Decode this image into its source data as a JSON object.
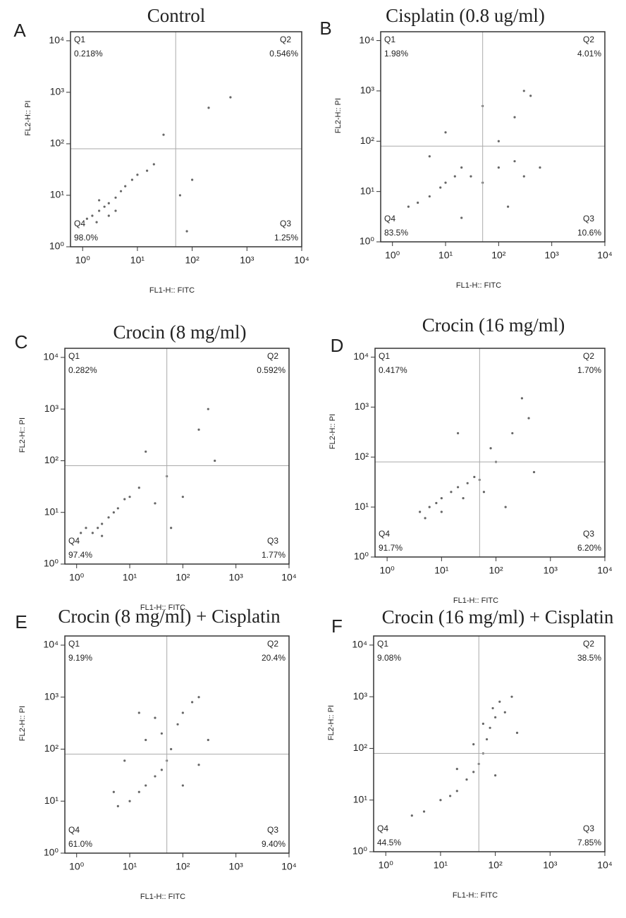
{
  "chart_data": [
    {
      "type": "scatter",
      "panel": "A",
      "title": "Control",
      "xlabel": "FL1-H:: FITC",
      "ylabel": "FL2-H:: PI",
      "xscale": "log",
      "yscale": "log",
      "color": "#666666",
      "xlim": [
        0.6,
        10000
      ],
      "ylim": [
        1,
        15000
      ],
      "xticks": [
        {
          "value": 1,
          "label": "10⁰"
        },
        {
          "value": 10,
          "label": "10¹"
        },
        {
          "value": 100,
          "label": "10²"
        },
        {
          "value": 1000,
          "label": "10³"
        },
        {
          "value": 10000,
          "label": "10⁴"
        }
      ],
      "yticks": [
        {
          "value": 1,
          "label": "10⁰"
        },
        {
          "value": 10,
          "label": "10¹"
        },
        {
          "value": 100,
          "label": "10²"
        },
        {
          "value": 1000,
          "label": "10³"
        },
        {
          "value": 10000,
          "label": "10⁴"
        }
      ],
      "gate": {
        "x": 50,
        "y": 80
      },
      "quadrants": [
        {
          "name": "Q1",
          "percent": "0.218%"
        },
        {
          "name": "Q2",
          "percent": "0.546%"
        },
        {
          "name": "Q4",
          "percent": "98.0%"
        },
        {
          "name": "Q3",
          "percent": "1.25%"
        }
      ],
      "x": [
        1.5,
        2,
        2.5,
        3,
        1.2,
        4,
        5,
        6,
        8,
        10,
        3,
        2,
        1.8,
        4,
        15,
        20,
        60,
        100,
        200,
        500,
        30,
        80
      ],
      "y": [
        4,
        5,
        6,
        7,
        3.5,
        9,
        12,
        15,
        20,
        25,
        4,
        8,
        3,
        5,
        30,
        40,
        10,
        20,
        500,
        800,
        150,
        2
      ]
    },
    {
      "type": "scatter",
      "panel": "B",
      "title": "Cisplatin (0.8 ug/ml)",
      "xlabel": "FL1-H:: FITC",
      "ylabel": "FL2-H:: PI",
      "xscale": "log",
      "yscale": "log",
      "color": "#666666",
      "xlim": [
        0.6,
        10000
      ],
      "ylim": [
        1,
        15000
      ],
      "xticks": [
        {
          "value": 1,
          "label": "10⁰"
        },
        {
          "value": 10,
          "label": "10¹"
        },
        {
          "value": 100,
          "label": "10²"
        },
        {
          "value": 1000,
          "label": "10³"
        },
        {
          "value": 10000,
          "label": "10⁴"
        }
      ],
      "yticks": [
        {
          "value": 1,
          "label": "10⁰"
        },
        {
          "value": 10,
          "label": "10¹"
        },
        {
          "value": 100,
          "label": "10²"
        },
        {
          "value": 1000,
          "label": "10³"
        },
        {
          "value": 10000,
          "label": "10⁴"
        }
      ],
      "gate": {
        "x": 50,
        "y": 80
      },
      "quadrants": [
        {
          "name": "Q1",
          "percent": "1.98%"
        },
        {
          "name": "Q2",
          "percent": "4.01%"
        },
        {
          "name": "Q4",
          "percent": "83.5%"
        },
        {
          "name": "Q3",
          "percent": "10.6%"
        }
      ],
      "x": [
        2,
        3,
        5,
        8,
        10,
        15,
        20,
        30,
        50,
        100,
        200,
        300,
        100,
        200,
        400,
        300,
        10,
        5,
        50,
        20,
        150,
        600
      ],
      "y": [
        5,
        6,
        8,
        12,
        15,
        20,
        30,
        20,
        15,
        30,
        40,
        20,
        100,
        300,
        800,
        1000,
        150,
        50,
        500,
        3,
        5,
        30
      ]
    },
    {
      "type": "scatter",
      "panel": "C",
      "title": "Crocin (8 mg/ml)",
      "xlabel": "FL1-H:: FITC",
      "ylabel": "FL2-H:: PI",
      "xscale": "log",
      "yscale": "log",
      "color": "#666666",
      "xlim": [
        0.6,
        10000
      ],
      "ylim": [
        1,
        15000
      ],
      "xticks": [
        {
          "value": 1,
          "label": "10⁰"
        },
        {
          "value": 10,
          "label": "10¹"
        },
        {
          "value": 100,
          "label": "10²"
        },
        {
          "value": 1000,
          "label": "10³"
        },
        {
          "value": 10000,
          "label": "10⁴"
        }
      ],
      "yticks": [
        {
          "value": 1,
          "label": "10⁰"
        },
        {
          "value": 10,
          "label": "10¹"
        },
        {
          "value": 100,
          "label": "10²"
        },
        {
          "value": 1000,
          "label": "10³"
        },
        {
          "value": 10000,
          "label": "10⁴"
        }
      ],
      "gate": {
        "x": 50,
        "y": 80
      },
      "quadrants": [
        {
          "name": "Q1",
          "percent": "0.282%"
        },
        {
          "name": "Q2",
          "percent": "0.592%"
        },
        {
          "name": "Q4",
          "percent": "97.4%"
        },
        {
          "name": "Q3",
          "percent": "1.77%"
        }
      ],
      "x": [
        1.5,
        2,
        3,
        4,
        5,
        6,
        8,
        10,
        2.5,
        1.2,
        3,
        15,
        30,
        50,
        100,
        200,
        300,
        20,
        60,
        400
      ],
      "y": [
        5,
        4,
        6,
        8,
        10,
        12,
        18,
        20,
        5,
        4,
        3.5,
        30,
        15,
        50,
        20,
        400,
        1000,
        150,
        5,
        100
      ]
    },
    {
      "type": "scatter",
      "panel": "D",
      "title": "Crocin (16 mg/ml)",
      "xlabel": "FL1-H:: FITC",
      "ylabel": "FL2-H:: PI",
      "xscale": "log",
      "yscale": "log",
      "color": "#666666",
      "xlim": [
        0.6,
        10000
      ],
      "ylim": [
        1,
        15000
      ],
      "xticks": [
        {
          "value": 1,
          "label": "10⁰"
        },
        {
          "value": 10,
          "label": "10¹"
        },
        {
          "value": 100,
          "label": "10²"
        },
        {
          "value": 1000,
          "label": "10³"
        },
        {
          "value": 10000,
          "label": "10⁴"
        }
      ],
      "yticks": [
        {
          "value": 1,
          "label": "10⁰"
        },
        {
          "value": 10,
          "label": "10¹"
        },
        {
          "value": 100,
          "label": "10²"
        },
        {
          "value": 1000,
          "label": "10³"
        },
        {
          "value": 10000,
          "label": "10⁴"
        }
      ],
      "gate": {
        "x": 50,
        "y": 80
      },
      "quadrants": [
        {
          "name": "Q1",
          "percent": "0.417%"
        },
        {
          "name": "Q2",
          "percent": "1.70%"
        },
        {
          "name": "Q4",
          "percent": "91.7%"
        },
        {
          "name": "Q3",
          "percent": "6.20%"
        }
      ],
      "x": [
        4,
        6,
        8,
        10,
        15,
        20,
        30,
        40,
        50,
        10,
        25,
        5,
        60,
        100,
        200,
        400,
        300,
        80,
        20,
        150,
        500
      ],
      "y": [
        8,
        10,
        12,
        15,
        20,
        25,
        30,
        40,
        35,
        8,
        15,
        6,
        20,
        80,
        300,
        600,
        1500,
        150,
        300,
        10,
        50
      ]
    },
    {
      "type": "scatter",
      "panel": "E",
      "title": "Crocin (8 mg/ml) + Cisplatin",
      "xlabel": "FL1-H:: FITC",
      "ylabel": "FL2-H:: PI",
      "xscale": "log",
      "yscale": "log",
      "color": "#666666",
      "xlim": [
        0.6,
        10000
      ],
      "ylim": [
        1,
        15000
      ],
      "xticks": [
        {
          "value": 1,
          "label": "10⁰"
        },
        {
          "value": 10,
          "label": "10¹"
        },
        {
          "value": 100,
          "label": "10²"
        },
        {
          "value": 1000,
          "label": "10³"
        },
        {
          "value": 10000,
          "label": "10⁴"
        }
      ],
      "yticks": [
        {
          "value": 1,
          "label": "10⁰"
        },
        {
          "value": 10,
          "label": "10¹"
        },
        {
          "value": 100,
          "label": "10²"
        },
        {
          "value": 1000,
          "label": "10³"
        },
        {
          "value": 10000,
          "label": "10⁴"
        }
      ],
      "gate": {
        "x": 50,
        "y": 80
      },
      "quadrants": [
        {
          "name": "Q1",
          "percent": "9.19%"
        },
        {
          "name": "Q2",
          "percent": "20.4%"
        },
        {
          "name": "Q4",
          "percent": "61.0%"
        },
        {
          "name": "Q3",
          "percent": "9.40%"
        }
      ],
      "x": [
        6,
        10,
        15,
        20,
        30,
        40,
        50,
        60,
        40,
        80,
        100,
        150,
        200,
        30,
        20,
        100,
        200,
        8,
        15,
        5,
        300
      ],
      "y": [
        8,
        10,
        15,
        20,
        30,
        40,
        60,
        100,
        200,
        300,
        500,
        800,
        1000,
        400,
        150,
        20,
        50,
        60,
        500,
        15,
        150
      ]
    },
    {
      "type": "scatter",
      "panel": "F",
      "title": "Crocin (16 mg/ml) + Cisplatin",
      "xlabel": "FL1-H:: FITC",
      "ylabel": "FL2-H:: PI",
      "xscale": "log",
      "yscale": "log",
      "color": "#666666",
      "xlim": [
        0.6,
        10000
      ],
      "ylim": [
        1,
        15000
      ],
      "xticks": [
        {
          "value": 1,
          "label": "10⁰"
        },
        {
          "value": 10,
          "label": "10¹"
        },
        {
          "value": 100,
          "label": "10²"
        },
        {
          "value": 1000,
          "label": "10³"
        },
        {
          "value": 10000,
          "label": "10⁴"
        }
      ],
      "yticks": [
        {
          "value": 1,
          "label": "10⁰"
        },
        {
          "value": 10,
          "label": "10¹"
        },
        {
          "value": 100,
          "label": "10²"
        },
        {
          "value": 1000,
          "label": "10³"
        },
        {
          "value": 10000,
          "label": "10⁴"
        }
      ],
      "gate": {
        "x": 50,
        "y": 80
      },
      "quadrants": [
        {
          "name": "Q1",
          "percent": "9.08%"
        },
        {
          "name": "Q2",
          "percent": "38.5%"
        },
        {
          "name": "Q4",
          "percent": "44.5%"
        },
        {
          "name": "Q3",
          "percent": "7.85%"
        }
      ],
      "x": [
        5,
        10,
        15,
        20,
        30,
        40,
        50,
        60,
        70,
        80,
        100,
        90,
        120,
        60,
        150,
        40,
        200,
        100,
        20,
        3,
        250
      ],
      "y": [
        6,
        10,
        12,
        15,
        25,
        35,
        50,
        80,
        150,
        250,
        400,
        600,
        800,
        300,
        500,
        120,
        1000,
        30,
        40,
        5,
        200
      ]
    }
  ]
}
